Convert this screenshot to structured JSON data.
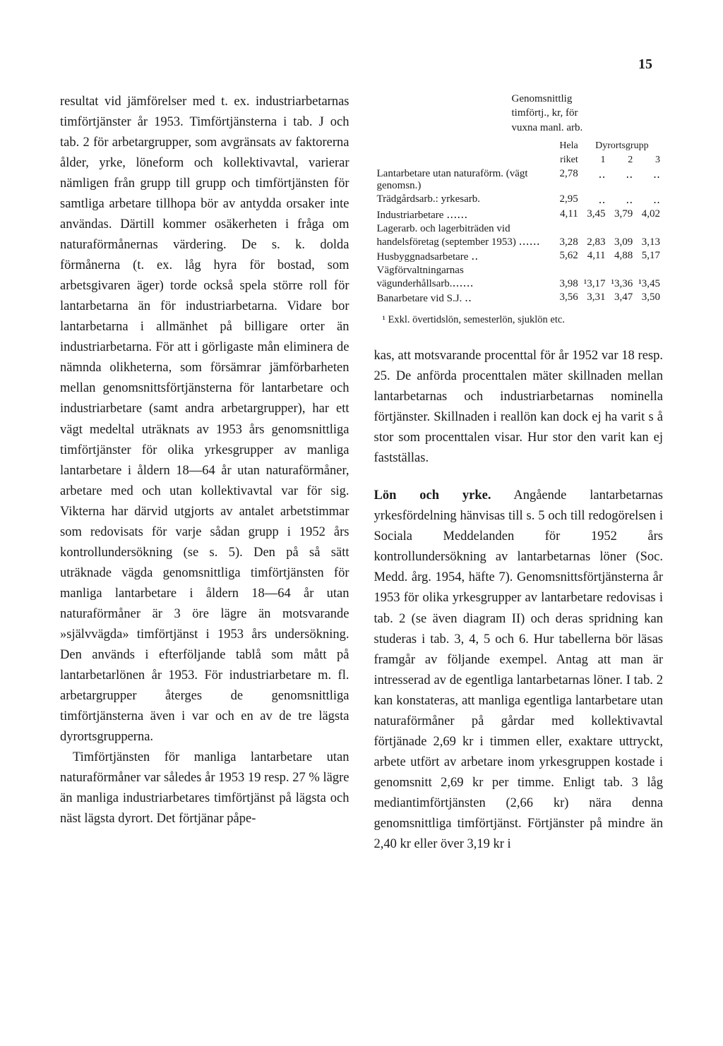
{
  "page_number": "15",
  "left_column": {
    "para1": "resultat vid jämförelser med t. ex. industriarbetarnas timförtjänster år 1953. Timförtjänsterna i tab. J och tab. 2 för arbetargrupper, som avgränsats av faktorerna ålder, yrke, löneform och kollektivavtal, varierar nämligen från grupp till grupp och timförtjänsten för samtliga arbetare tillhopa bör av antydda orsaker inte användas. Därtill kommer osäkerheten i fråga om naturaförmånernas värdering. De s. k. dolda förmånerna (t. ex. låg hyra för bostad, som arbetsgivaren äger) torde också spela större roll för lantarbetarna än för industriarbetarna. Vidare bor lantarbetarna i allmänhet på billigare orter än industriarbetarna. För att i görligaste mån eliminera de nämnda olikheterna, som försämrar jämförbarheten mellan genomsnittsförtjänsterna för lantarbetare och industriarbetare (samt andra arbetargrupper), har ett vägt medeltal uträknats av 1953 års genomsnittliga timförtjänster för olika yrkesgrupper av manliga lantarbetare i åldern 18—64 år utan naturaförmåner, arbetare med och utan kollektivavtal var för sig. Vikterna har därvid utgjorts av antalet arbetstimmar som redovisats för varje sådan grupp i 1952 års kontrollundersökning (se s. 5). Den på så sätt uträknade vägda genomsnittliga timförtjänsten för manliga lantarbetare i åldern 18—64 år utan naturaförmåner är 3 öre lägre än motsvarande »självvägda» timförtjänst i 1953 års undersökning. Den används i efterföljande tablå som mått på lantarbetarlönen år 1953. För industriarbetare m. fl. arbetargrupper återges de genomsnittliga timförtjänsterna även i var och en av de tre lägsta dyrortsgrupperna.",
    "para2": "Timförtjänsten för manliga lantarbetare utan naturaförmåner var således år 1953 19 resp. 27 % lägre än manliga industriarbetares timförtjänst på lägsta och näst lägsta dyrort. Det förtjänar påpe-"
  },
  "table": {
    "header_line1": "Genomsnittlig",
    "header_line2": "timförtj., kr, för",
    "header_line3": "vuxna manl. arb.",
    "col_hela": "Hela",
    "col_riket": "riket",
    "col_dyr": "Dyrortsgrupp",
    "col_1": "1",
    "col_2": "2",
    "col_3": "3",
    "rows": [
      {
        "label": "Lantarbetare utan naturaförm. (vägt genomsn.)",
        "c1": "2,78",
        "c2": "‥",
        "c3": "‥",
        "c4": "‥"
      },
      {
        "label": "Trädgårdsarb.: yrkesarb.",
        "c1": "2,95",
        "c2": "‥",
        "c3": "‥",
        "c4": "‥"
      },
      {
        "label": "Industriarbetare ‥‥‥",
        "c1": "4,11",
        "c2": "3,45",
        "c3": "3,79",
        "c4": "4,02"
      },
      {
        "label": "Lagerarb. och lagerbiträden vid handelsföretag (september 1953) ‥‥‥",
        "c1": "3,28",
        "c2": "2,83",
        "c3": "3,09",
        "c4": "3,13"
      },
      {
        "label": "Husbyggnadsarbetare ‥",
        "c1": "5,62",
        "c2": "4,11",
        "c3": "4,88",
        "c4": "5,17"
      },
      {
        "label": "Vägförvaltningarnas vägunderhållsarb.‥‥‥",
        "c1": "3,98",
        "c2": "¹3,17",
        "c3": "¹3,36",
        "c4": "¹3,45"
      },
      {
        "label": "Banarbetare vid S.J. ‥",
        "c1": "3,56",
        "c2": "3,31",
        "c3": "3,47",
        "c4": "3,50"
      }
    ],
    "footnote": "¹ Exkl. övertidslön, semesterlön, sjuklön etc."
  },
  "right_column": {
    "para1": "kas, att motsvarande procenttal för år 1952 var 18 resp. 25. De anförda procenttalen mäter skillnaden mellan lantarbetarnas och industriarbetarnas nominella förtjänster. Skillnaden i reallön kan dock ej ha varit s å stor som procenttalen visar. Hur stor den varit kan ej fastställas.",
    "para2_lead": "Lön och yrke.",
    "para2": " Angående lantarbetarnas yrkesfördelning hänvisas till s. 5 och till redogörelsen i Sociala Meddelanden för 1952 års kontrollundersökning av lantarbetarnas löner (Soc. Medd. årg. 1954, häfte 7). Genomsnittsförtjänsterna år 1953 för olika yrkesgrupper av lantarbetare redovisas i tab. 2 (se även diagram II) och deras spridning kan studeras i tab. 3, 4, 5 och 6. Hur tabellerna bör läsas framgår av följande exempel. Antag att man är intresserad av de egentliga lantarbetarnas löner. I tab. 2 kan konstateras, att manliga egentliga lantarbetare utan naturaförmåner på gårdar med kollektivavtal förtjänade 2,69 kr i timmen eller, exaktare uttryckt, arbete utfört av arbetare inom yrkesgruppen kostade i genomsnitt 2,69 kr per timme. Enligt tab. 3 låg mediantimförtjänsten (2,66 kr) nära denna genomsnittliga timförtjänst. Förtjänster på mindre än 2,40 kr eller över 3,19 kr i"
  }
}
